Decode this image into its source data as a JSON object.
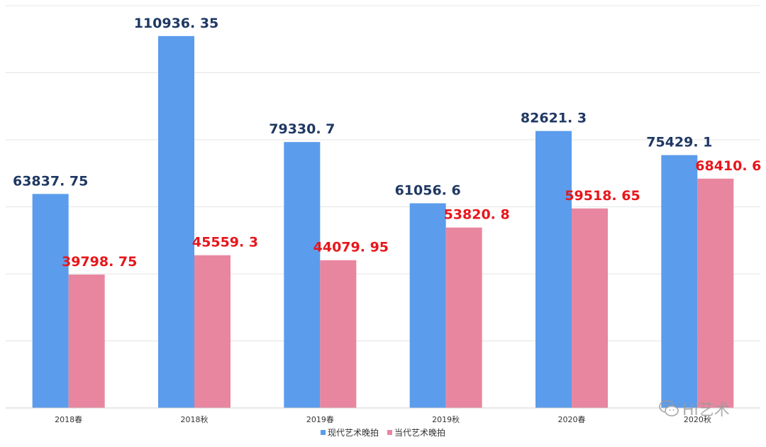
{
  "chart_data": {
    "type": "bar",
    "categories": [
      "2018春",
      "2018秋",
      "2019春",
      "2019秋",
      "2020春",
      "2020秋"
    ],
    "series": [
      {
        "name": "现代艺术晚拍",
        "values": [
          63837.75,
          110936.35,
          79330.7,
          61056.6,
          82621.3,
          75429.1
        ],
        "labels": [
          "63837. 75",
          "110936. 35",
          "79330. 7",
          "61056. 6",
          "82621. 3",
          "75429. 1"
        ],
        "color": "#5b9cec",
        "label_color": "#1f3864"
      },
      {
        "name": "当代艺术晚拍",
        "values": [
          39798.75,
          45559.3,
          44079.95,
          53820.8,
          59518.65,
          68410.6
        ],
        "labels": [
          "39798. 75",
          "45559. 3",
          "44079. 95",
          "53820. 8",
          "59518. 65",
          "68410. 6"
        ],
        "color": "#e9869f",
        "label_color": "#e8161b"
      }
    ],
    "ylim": [
      0,
      120000
    ],
    "grid": true,
    "legend_position": "bottom"
  },
  "watermark": {
    "text": "Hi艺术",
    "icon": "wechat-icon"
  }
}
